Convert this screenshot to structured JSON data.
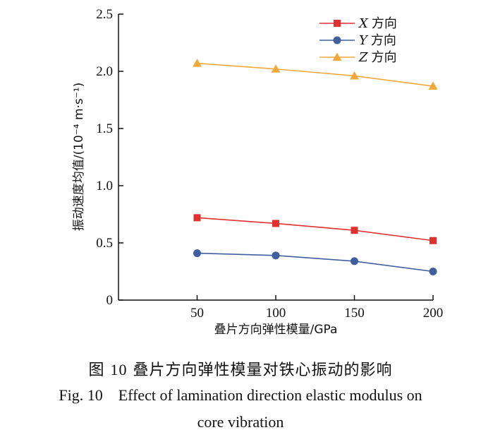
{
  "chart_data": {
    "type": "line",
    "xlabel": "叠片方向弹性模量/GPa",
    "ylabel": "振动速度均值/(10⁻⁴ m·s⁻¹)",
    "x": [
      50,
      100,
      150,
      200
    ],
    "x_ticks": [
      "50",
      "100",
      "150",
      "200"
    ],
    "y_ticks": [
      "0",
      "0.5",
      "1.0",
      "1.5",
      "2.0",
      "2.5"
    ],
    "xlim": [
      0,
      200
    ],
    "ylim": [
      0,
      2.5
    ],
    "grid": false,
    "legend_position": "top-right",
    "series": [
      {
        "name": "X 方向",
        "var": "X",
        "dir": "方向",
        "marker": "square",
        "color": "#e03030",
        "values": [
          0.72,
          0.67,
          0.61,
          0.52
        ]
      },
      {
        "name": "Y 方向",
        "var": "Y",
        "dir": "方向",
        "marker": "circle",
        "color": "#3f5f9f",
        "values": [
          0.41,
          0.39,
          0.34,
          0.25
        ]
      },
      {
        "name": "Z 方向",
        "var": "Z",
        "dir": "方向",
        "marker": "triangle",
        "color": "#f2a93b",
        "values": [
          2.07,
          2.02,
          1.96,
          1.87
        ]
      }
    ]
  },
  "caption": {
    "cn_prefix": "图",
    "cn_number": "10",
    "cn_title": "叠片方向弹性模量对铁心振动的影响",
    "en_line1": "Fig. 10    Effect of lamination direction elastic modulus on",
    "en_line2": "core vibration"
  }
}
